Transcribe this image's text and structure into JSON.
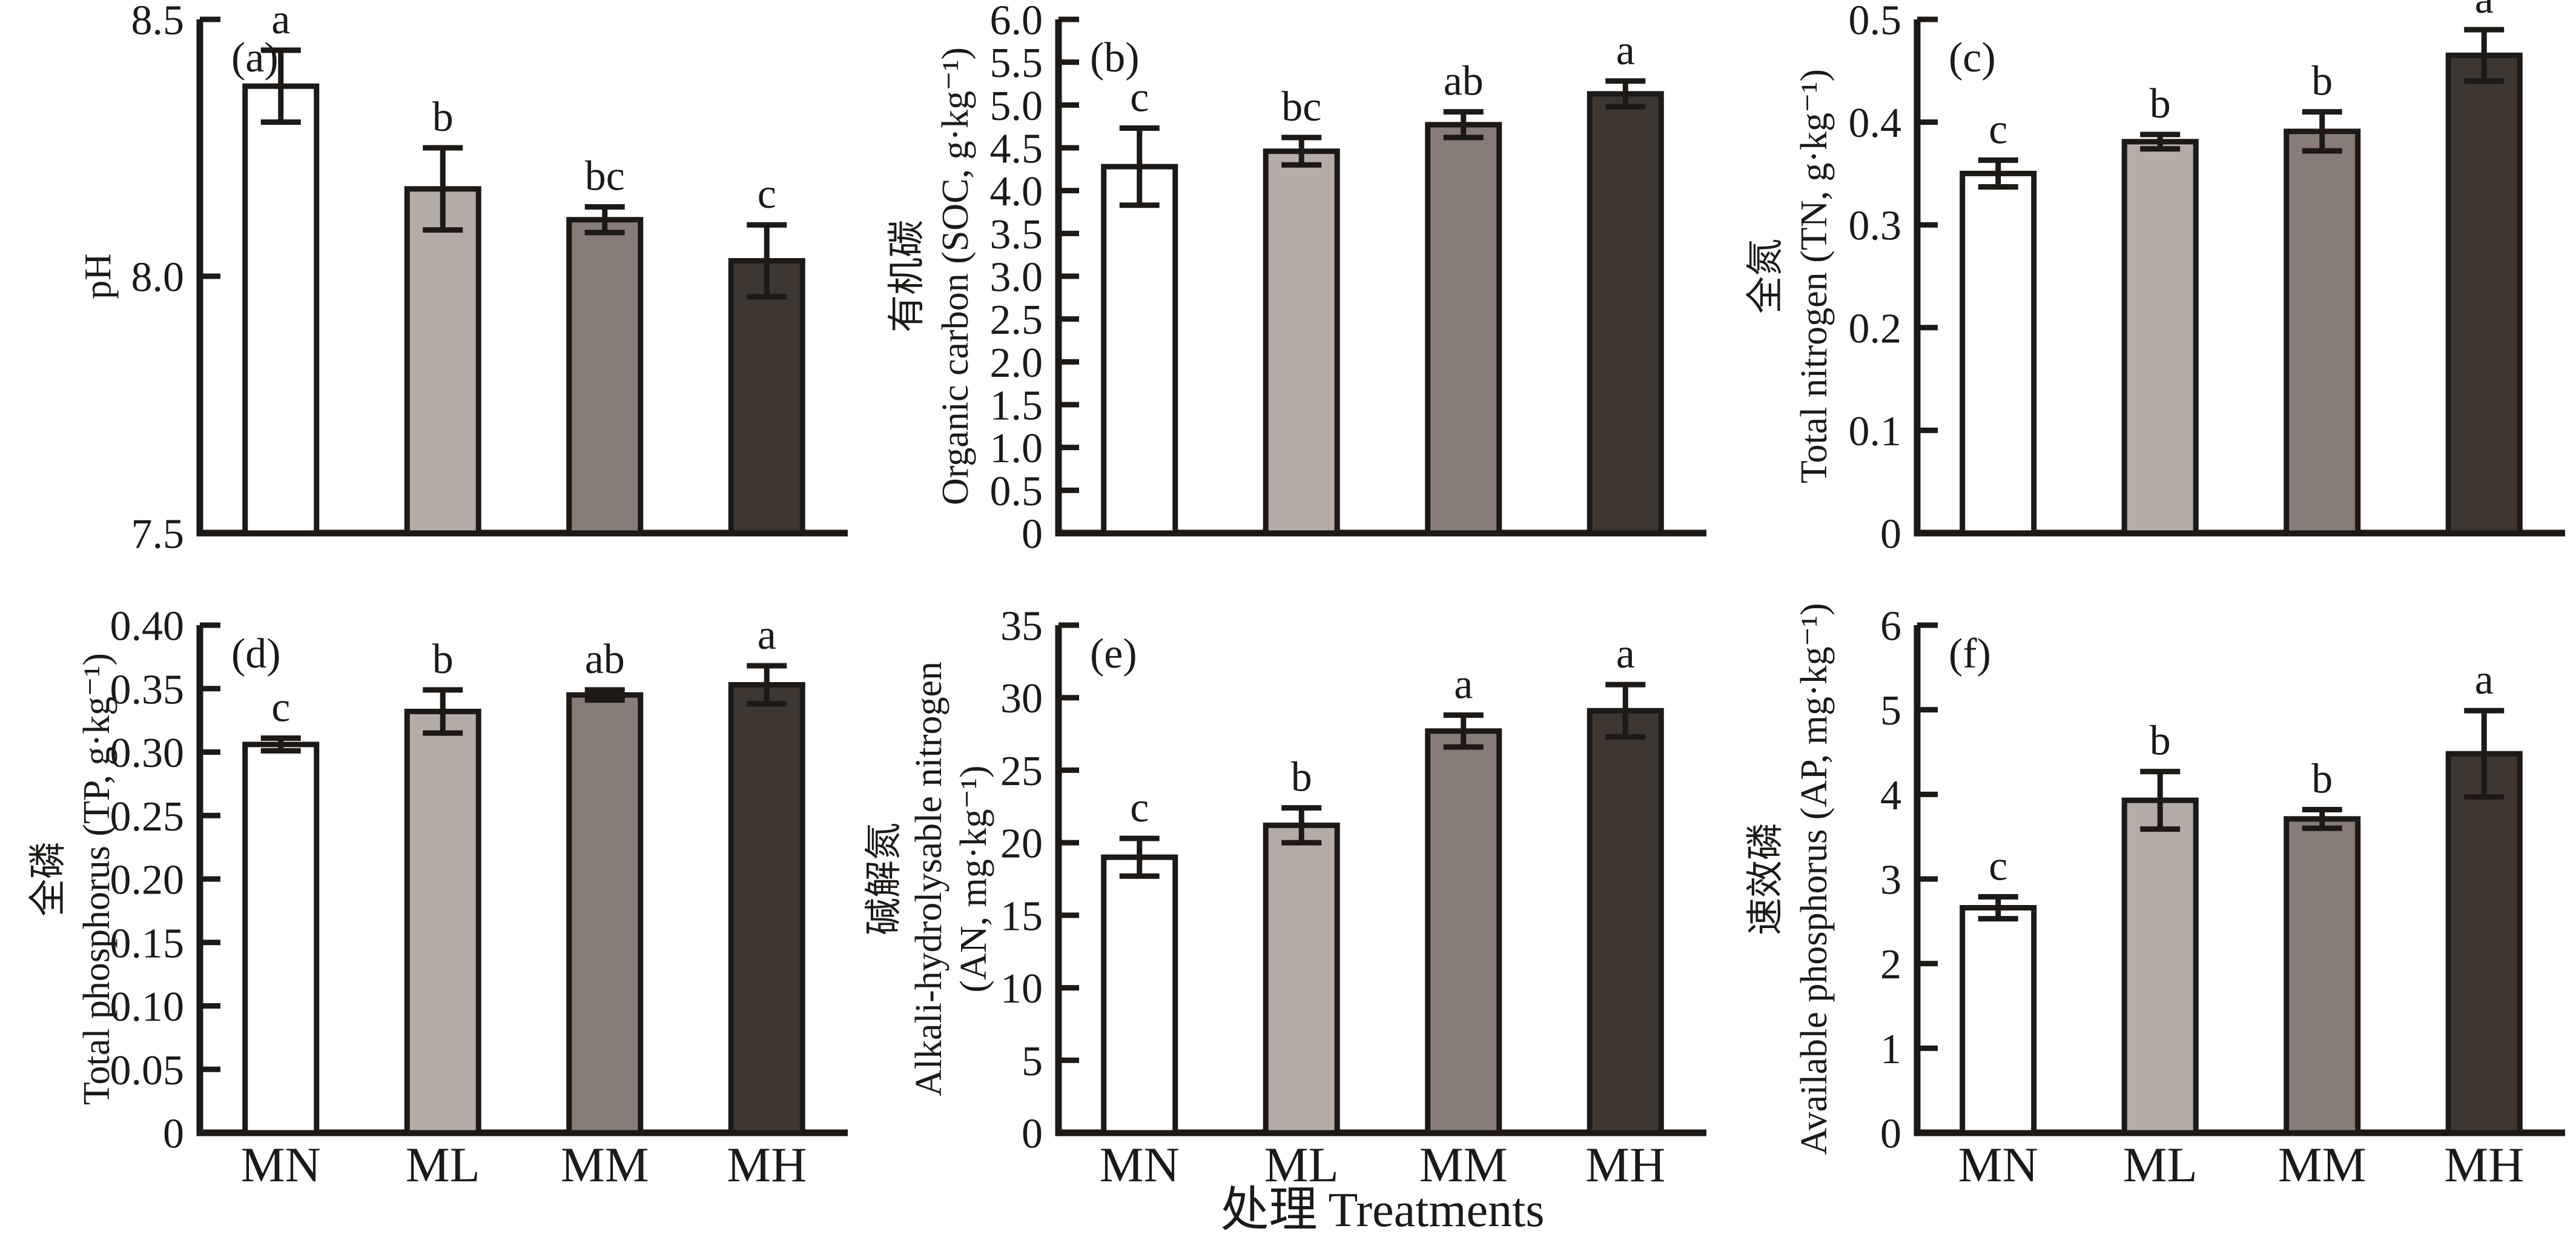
{
  "figure": {
    "xlabel": {
      "zh": "处理",
      "en": "Treatments"
    },
    "categories": [
      "MN",
      "ML",
      "MM",
      "MH"
    ],
    "bar_colors": [
      "#FFFFFF",
      "#B5ACA7",
      "#877C77",
      "#3E3631"
    ],
    "ink_color": "#1C1916",
    "background": "#FFFFFF"
  },
  "chart_data": [
    {
      "type": "bar",
      "panel_tag": "(a)",
      "ylabel_lines": [
        "pH"
      ],
      "ymin": 7.5,
      "ymax": 8.5,
      "ytick_step": 0.5,
      "ytick_decimals": 1,
      "categories": [
        "MN",
        "ML",
        "MM",
        "MH"
      ],
      "values": [
        8.37,
        8.17,
        8.11,
        8.03
      ],
      "errors": [
        0.07,
        0.08,
        0.025,
        0.07
      ],
      "sig_letters": [
        "a",
        "b",
        "bc",
        "c"
      ],
      "show_x_labels": false
    },
    {
      "type": "bar",
      "panel_tag": "(b)",
      "ylabel_lines": [
        "有机碳",
        "Organic carbon (SOC, g·kg⁻¹)"
      ],
      "ymin": 0,
      "ymax": 6.0,
      "ytick_step": 0.5,
      "ytick_decimals": 1,
      "categories": [
        "MN",
        "ML",
        "MM",
        "MH"
      ],
      "values": [
        4.28,
        4.46,
        4.77,
        5.13
      ],
      "errors": [
        0.45,
        0.16,
        0.15,
        0.15
      ],
      "sig_letters": [
        "c",
        "bc",
        "ab",
        "a"
      ],
      "show_x_labels": false
    },
    {
      "type": "bar",
      "panel_tag": "(c)",
      "ylabel_lines": [
        "全氮",
        "Total nitrogen (TN,  g·kg⁻¹)"
      ],
      "ymin": 0,
      "ymax": 0.5,
      "ytick_step": 0.1,
      "ytick_decimals": 1,
      "categories": [
        "MN",
        "ML",
        "MM",
        "MH"
      ],
      "values": [
        0.35,
        0.381,
        0.391,
        0.465
      ],
      "errors": [
        0.013,
        0.007,
        0.019,
        0.025
      ],
      "sig_letters": [
        "c",
        "b",
        "b",
        "a"
      ],
      "show_x_labels": false
    },
    {
      "type": "bar",
      "panel_tag": "(d)",
      "ylabel_lines": [
        "全磷",
        "Total phosphorus (TP,  g·kg⁻¹)"
      ],
      "ymin": 0,
      "ymax": 0.4,
      "ytick_step": 0.05,
      "ytick_decimals": 2,
      "categories": [
        "MN",
        "ML",
        "MM",
        "MH"
      ],
      "values": [
        0.306,
        0.332,
        0.345,
        0.353
      ],
      "errors": [
        0.005,
        0.017,
        0.004,
        0.015
      ],
      "sig_letters": [
        "c",
        "b",
        "ab",
        "a"
      ],
      "show_x_labels": true
    },
    {
      "type": "bar",
      "panel_tag": "(e)",
      "ylabel_lines": [
        "碱解氮",
        "Alkali-hydrolysable nitrogen",
        "(AN, mg·kg⁻¹)"
      ],
      "ymin": 0,
      "ymax": 35,
      "ytick_step": 5,
      "ytick_decimals": 0,
      "categories": [
        "MN",
        "ML",
        "MM",
        "MH"
      ],
      "values": [
        19.0,
        21.2,
        27.7,
        29.1
      ],
      "errors": [
        1.3,
        1.2,
        1.1,
        1.8
      ],
      "sig_letters": [
        "c",
        "b",
        "a",
        "a"
      ],
      "show_x_labels": true
    },
    {
      "type": "bar",
      "panel_tag": "(f)",
      "ylabel_lines": [
        "速效磷",
        "Available phosphorus  (AP, mg·kg⁻¹)"
      ],
      "ymin": 0,
      "ymax": 6,
      "ytick_step": 1,
      "ytick_decimals": 0,
      "categories": [
        "MN",
        "ML",
        "MM",
        "MH"
      ],
      "values": [
        2.66,
        3.93,
        3.71,
        4.48
      ],
      "errors": [
        0.13,
        0.34,
        0.11,
        0.51
      ],
      "sig_letters": [
        "c",
        "b",
        "b",
        "a"
      ],
      "show_x_labels": true
    }
  ]
}
